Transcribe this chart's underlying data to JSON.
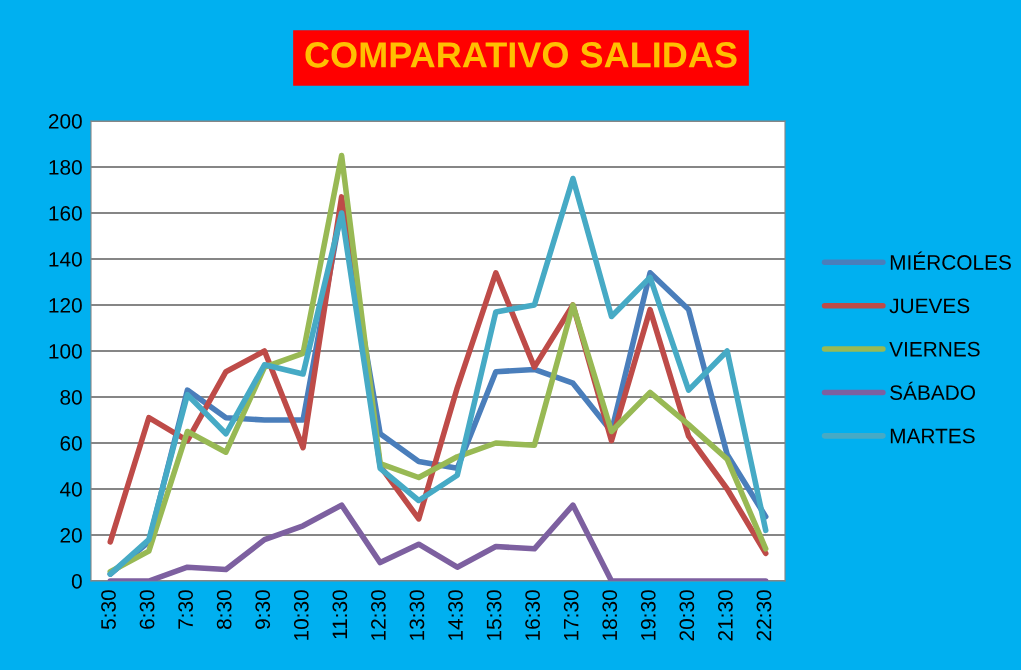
{
  "chart_data": {
    "type": "line",
    "title": "COMPARATIVO SALIDAS",
    "categories": [
      "5:30",
      "6:30",
      "7:30",
      "8:30",
      "9:30",
      "10:30",
      "11:30",
      "12:30",
      "13:30",
      "14:30",
      "15:30",
      "16:30",
      "17:30",
      "18:30",
      "19:30",
      "20:30",
      "21:30",
      "22:30"
    ],
    "series": [
      {
        "name": "MIÉRCOLES",
        "color": "#4a7ebb",
        "values": [
          3,
          17,
          83,
          71,
          70,
          70,
          162,
          64,
          52,
          49,
          91,
          92,
          86,
          65,
          134,
          118,
          55,
          28
        ]
      },
      {
        "name": "JUEVES",
        "color": "#be4b48",
        "values": [
          17,
          71,
          61,
          91,
          100,
          58,
          167,
          50,
          27,
          84,
          134,
          93,
          120,
          61,
          118,
          63,
          40,
          12
        ]
      },
      {
        "name": "VIERNES",
        "color": "#98b954",
        "values": [
          4,
          13,
          65,
          56,
          93,
          99,
          185,
          51,
          45,
          54,
          60,
          59,
          120,
          65,
          82,
          68,
          53,
          14
        ]
      },
      {
        "name": "SÁBADO",
        "color": "#7d60a0",
        "values": [
          0,
          0,
          6,
          5,
          18,
          24,
          33,
          8,
          16,
          6,
          15,
          14,
          33,
          0,
          0,
          0,
          0,
          0
        ]
      },
      {
        "name": "MARTES",
        "color": "#46aac5",
        "values": [
          3,
          18,
          81,
          64,
          94,
          90,
          160,
          49,
          35,
          46,
          117,
          120,
          175,
          115,
          132,
          83,
          100,
          22
        ]
      }
    ],
    "ylim": [
      0,
      200
    ],
    "yticks": [
      0,
      20,
      40,
      60,
      80,
      100,
      120,
      140,
      160,
      180,
      200
    ],
    "grid": "y",
    "legend": "right",
    "marker": "none",
    "line_style": "solid"
  }
}
